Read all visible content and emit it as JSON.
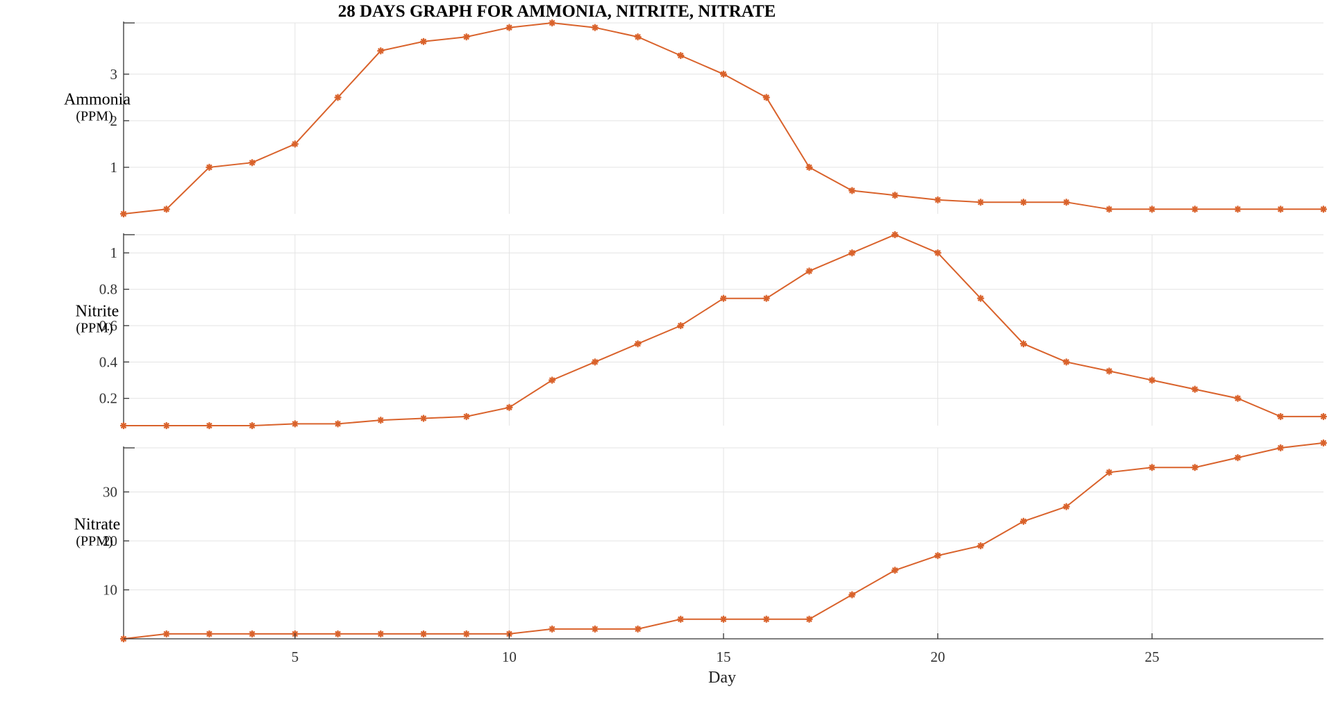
{
  "chart_data": {
    "type": "line",
    "title": "28 DAYS GRAPH FOR AMMONIA, NITRITE, NITRATE",
    "xlabel": "Day",
    "x": [
      1,
      2,
      3,
      4,
      5,
      6,
      7,
      8,
      9,
      10,
      11,
      12,
      13,
      14,
      15,
      16,
      17,
      18,
      19,
      20,
      21,
      22,
      23,
      24,
      25,
      26,
      27,
      28,
      29
    ],
    "xlim": [
      1,
      29
    ],
    "xticks": [
      5,
      10,
      15,
      20,
      25
    ],
    "grid": true,
    "line_color": "#d9622b",
    "marker": "asterisk",
    "subplots": [
      {
        "ylabel": "Ammonia",
        "yunit": "(PPM)",
        "ylim": [
          0,
          4.1
        ],
        "yticks": [
          1,
          2,
          3
        ],
        "series": [
          {
            "values": [
              0,
              0.1,
              1,
              1.1,
              1.5,
              2.5,
              3.5,
              3.7,
              3.8,
              4.0,
              4.1,
              4.0,
              3.8,
              3.4,
              3.0,
              2.5,
              1.0,
              0.5,
              0.4,
              0.3,
              0.25,
              0.25,
              0.25,
              0.1,
              0.1,
              0.1,
              0.1,
              0.1,
              0.1
            ]
          }
        ]
      },
      {
        "ylabel": "Nitrite",
        "yunit": "(PPM)",
        "ylim": [
          0.05,
          1.1
        ],
        "yticks": [
          0.2,
          0.4,
          0.6,
          0.8,
          1
        ],
        "series": [
          {
            "values": [
              0.05,
              0.05,
              0.05,
              0.05,
              0.06,
              0.06,
              0.08,
              0.09,
              0.1,
              0.15,
              0.3,
              0.4,
              0.5,
              0.6,
              0.75,
              0.75,
              0.9,
              1.0,
              1.1,
              1.0,
              0.75,
              0.5,
              0.4,
              0.35,
              0.3,
              0.25,
              0.2,
              0.1,
              0.1
            ]
          }
        ]
      },
      {
        "ylabel": "Nitrate",
        "yunit": "(PPM)",
        "ylim": [
          0,
          39
        ],
        "yticks": [
          10,
          20,
          30
        ],
        "series": [
          {
            "values": [
              0,
              1,
              1,
              1,
              1,
              1,
              1,
              1,
              1,
              1,
              2,
              2,
              2,
              4,
              4,
              4,
              4,
              9,
              14,
              17,
              19,
              24,
              27,
              34,
              35,
              35,
              37,
              39,
              40
            ]
          }
        ]
      }
    ]
  }
}
